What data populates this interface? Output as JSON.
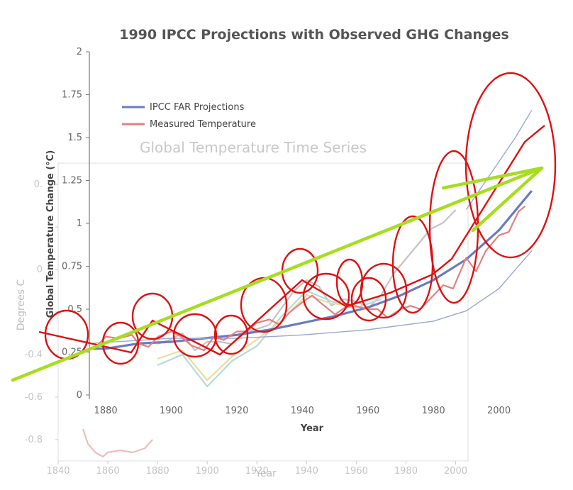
{
  "chart_data": [
    {
      "type": "line",
      "title": "1990 IPCC Projections with Observed GHG Changes",
      "xlabel": "Year",
      "ylabel": "Global Temperature Change (°C)",
      "xlim": [
        1875,
        2012
      ],
      "ylim": [
        0,
        2
      ],
      "x_ticks": [
        1880,
        1900,
        1920,
        1940,
        1960,
        1980,
        2000
      ],
      "y_ticks": [
        0,
        0.25,
        0.5,
        0.75,
        1,
        1.25,
        1.5,
        1.75,
        2
      ],
      "y_tick_labels": [
        "0",
        "0.25",
        "0.5",
        "0.75",
        "1",
        "1.25",
        "1.5",
        "1.75",
        "2"
      ],
      "legend": [
        {
          "label": "IPCC FAR Projections",
          "color": "#6a7bbf"
        },
        {
          "label": "Measured Temperature",
          "color": "#e57f7f"
        }
      ],
      "series": [
        {
          "name": "IPCC FAR Projections (best estimate)",
          "color": "#6a7bbf",
          "x": [
            1875,
            1880,
            1890,
            1900,
            1910,
            1920,
            1930,
            1940,
            1950,
            1960,
            1970,
            1980,
            1990,
            2000,
            2010
          ],
          "values": [
            0.27,
            0.27,
            0.3,
            0.31,
            0.33,
            0.35,
            0.38,
            0.42,
            0.46,
            0.51,
            0.58,
            0.67,
            0.79,
            0.96,
            1.19
          ]
        },
        {
          "name": "IPCC FAR Projections (upper)",
          "color": "#9aa6d6",
          "x": [
            1990,
            1995,
            2000,
            2005,
            2010
          ],
          "values": [
            1.08,
            1.22,
            1.36,
            1.5,
            1.66
          ]
        },
        {
          "name": "IPCC FAR Projections (lower)",
          "color": "#9aa6d6",
          "x": [
            1875,
            1900,
            1920,
            1940,
            1960,
            1980,
            1990,
            2000,
            2010
          ],
          "values": [
            0.3,
            0.33,
            0.33,
            0.35,
            0.38,
            0.43,
            0.49,
            0.62,
            0.84
          ]
        },
        {
          "name": "Measured Temperature",
          "color": "#e57f7f",
          "x": [
            1877,
            1880,
            1884,
            1888,
            1890,
            1893,
            1896,
            1900,
            1903,
            1906,
            1910,
            1913,
            1916,
            1920,
            1923,
            1926,
            1930,
            1933,
            1936,
            1940,
            1943,
            1946,
            1950,
            1953,
            1956,
            1960,
            1963,
            1966,
            1970,
            1973,
            1976,
            1980,
            1983,
            1986,
            1990,
            1993,
            1996,
            2000,
            2003,
            2006,
            2008
          ],
          "values": [
            0.28,
            0.34,
            0.33,
            0.35,
            0.3,
            0.28,
            0.34,
            0.37,
            0.34,
            0.29,
            0.26,
            0.34,
            0.32,
            0.37,
            0.37,
            0.42,
            0.44,
            0.41,
            0.48,
            0.54,
            0.58,
            0.53,
            0.47,
            0.51,
            0.52,
            0.5,
            0.5,
            0.45,
            0.5,
            0.52,
            0.5,
            0.58,
            0.64,
            0.62,
            0.8,
            0.72,
            0.84,
            0.93,
            0.95,
            1.07,
            1.1
          ]
        }
      ]
    },
    {
      "type": "line",
      "title": "Global Temperature Time Series",
      "xlabel": "Year",
      "ylabel": "Degrees C",
      "xlim": [
        1840,
        2005
      ],
      "ylim": [
        -0.9,
        0.5
      ],
      "x_ticks": [
        1840,
        1860,
        1880,
        1900,
        1920,
        1940,
        1960,
        1980,
        2000
      ],
      "y_ticks": [
        -0.8,
        -0.6,
        -0.4,
        -0.2,
        0,
        0.2,
        0.4
      ],
      "y_tick_labels": [
        "-0.8",
        "-0.6",
        "-0.4",
        "",
        "0",
        "",
        "0."
      ],
      "series": [
        {
          "name": "Temperature reconstruction (grey)",
          "color": "#c4c4c4",
          "x": [
            1880,
            1885,
            1890,
            1895,
            1900,
            1905,
            1910,
            1915,
            1920,
            1925,
            1930,
            1935,
            1940,
            1945,
            1950,
            1955,
            1960,
            1965,
            1970,
            1975,
            1980,
            1985,
            1990,
            1995,
            2000
          ],
          "values": [
            -0.35,
            -0.33,
            -0.3,
            -0.38,
            -0.34,
            -0.34,
            -0.35,
            -0.3,
            -0.28,
            -0.26,
            -0.18,
            -0.1,
            -0.05,
            -0.08,
            -0.17,
            -0.14,
            -0.15,
            -0.18,
            -0.12,
            -0.02,
            0.05,
            0.12,
            0.19,
            0.22,
            0.28
          ]
        },
        {
          "name": "Early temperature record (pink)",
          "color": "#efbcbc",
          "x": [
            1850,
            1852,
            1855,
            1858,
            1860,
            1865,
            1870,
            1875,
            1878
          ],
          "values": [
            -0.75,
            -0.82,
            -0.86,
            -0.88,
            -0.86,
            -0.85,
            -0.86,
            -0.84,
            -0.8
          ]
        },
        {
          "name": "Model spread (teal)",
          "color": "#b5dada",
          "x": [
            1880,
            1890,
            1900,
            1910,
            1920,
            1930,
            1940,
            1950,
            1960,
            1970
          ],
          "values": [
            -0.45,
            -0.4,
            -0.55,
            -0.43,
            -0.36,
            -0.22,
            -0.1,
            -0.15,
            -0.18,
            -0.14
          ]
        },
        {
          "name": "Model spread (yellow)",
          "color": "#eadca0",
          "x": [
            1880,
            1890,
            1900,
            1910,
            1920,
            1930,
            1940,
            1950,
            1960
          ],
          "values": [
            -0.42,
            -0.38,
            -0.52,
            -0.41,
            -0.33,
            -0.24,
            -0.12,
            -0.16,
            -0.17
          ]
        }
      ]
    }
  ],
  "annotations": {
    "red_ellipse_count": 14,
    "red_trend_line_segments": 11,
    "green_arrow": "long upward trend arrow"
  }
}
